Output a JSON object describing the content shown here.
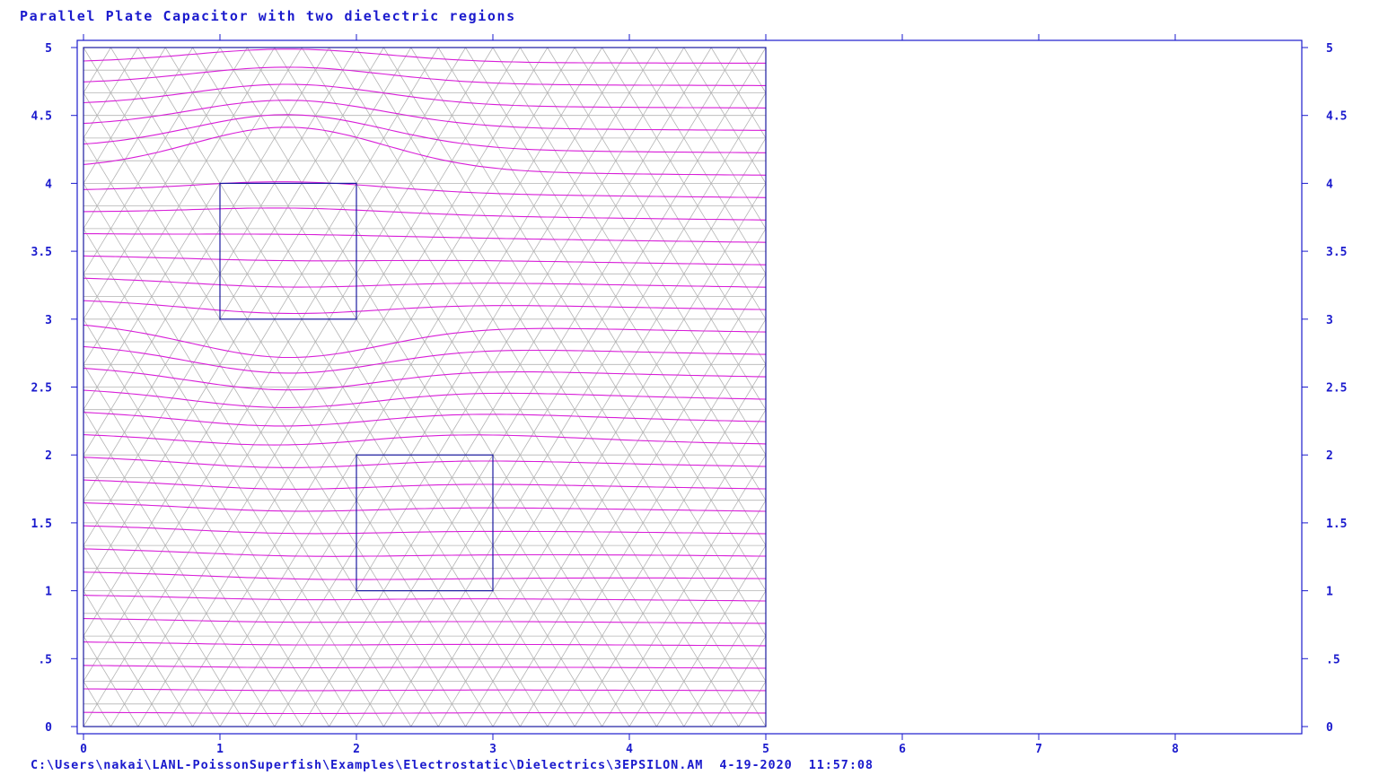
{
  "title": "Parallel Plate Capacitor with two dielectric regions",
  "footer": {
    "path": "C:\\Users\\nakai\\LANL-PoissonSuperfish\\Examples\\Electrostatic\\Dielectrics\\3EPSILON.AM",
    "date": "4-19-2020",
    "time": "11:57:08"
  },
  "colors": {
    "axes": "#1a1acd",
    "field_lines": "#d81ed8",
    "mesh": "#b4b4b4",
    "regions": "#1a1aa0"
  },
  "chart_data": {
    "type": "line",
    "xlim": [
      0,
      8.9
    ],
    "ylim": [
      0,
      5
    ],
    "x_ticks": [
      "0",
      "1",
      "2",
      "3",
      "4",
      "5",
      "6",
      "7",
      "8"
    ],
    "y_ticks_left": [
      "0",
      ".5",
      "1",
      "1.5",
      "2",
      "2.5",
      "3",
      "3.5",
      "4",
      "4.5",
      "5"
    ],
    "y_ticks_right": [
      "0",
      ".5",
      "1",
      "1.5",
      "2",
      "2.5",
      "3",
      "3.5",
      "4",
      "4.5",
      "5"
    ],
    "domain_box": {
      "x": [
        0,
        5
      ],
      "y": [
        0,
        5
      ]
    },
    "dielectric_regions": [
      {
        "x": [
          1,
          2
        ],
        "y": [
          3,
          4
        ]
      },
      {
        "x": [
          2,
          3
        ],
        "y": [
          1,
          2
        ]
      }
    ],
    "field_line_count": 30,
    "grid": false
  }
}
